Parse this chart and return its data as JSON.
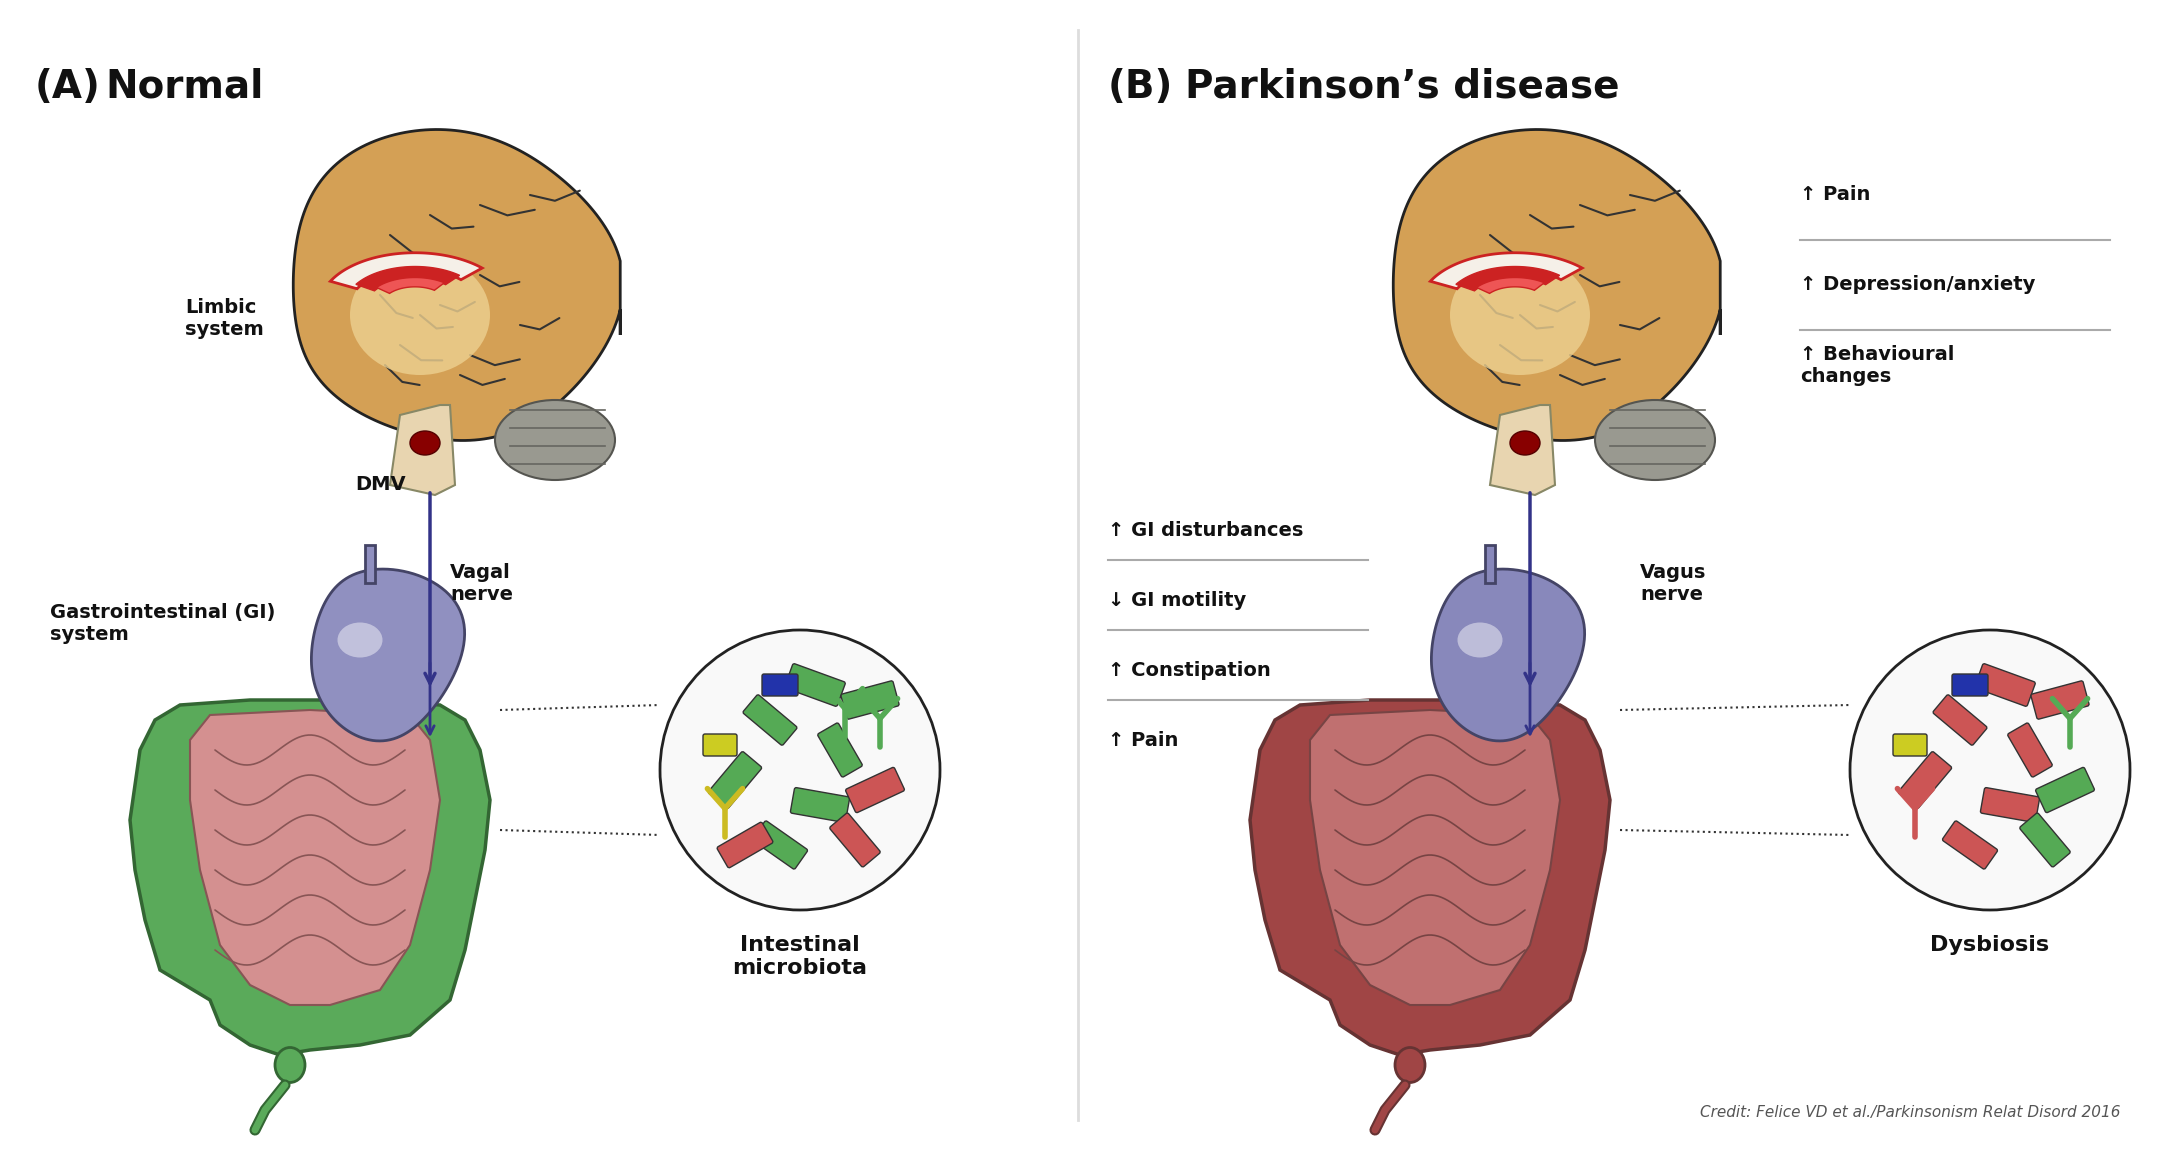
{
  "panel_A_label": "(A)",
  "panel_A_title": "Normal",
  "panel_B_label": "(B)",
  "panel_B_title": "Parkinson’s disease",
  "credit": "Credit: Felice VD et al./Parkinsonism Relat Disord 2016",
  "bg_color": "#ffffff",
  "brain_outer": "#D4A055",
  "brain_inner_light": "#EDD090",
  "brain_outline": "#333333",
  "limbic_white": "#F5F0E8",
  "limbic_red": "#CC2222",
  "dmv_red": "#880000",
  "brainstem_color": "#E8D5B0",
  "cerebellum_color": "#999990",
  "nerve_color": "#333388",
  "stomach_A_color": "#9090C0",
  "stomach_B_color": "#8888BB",
  "colon_A_outer": "#5aaa5a",
  "colon_A_inner": "#D49090",
  "colon_B_outer": "#A04545",
  "colon_B_inner": "#C07070",
  "separator_color": "#aaaaaa",
  "text_color": "#111111"
}
